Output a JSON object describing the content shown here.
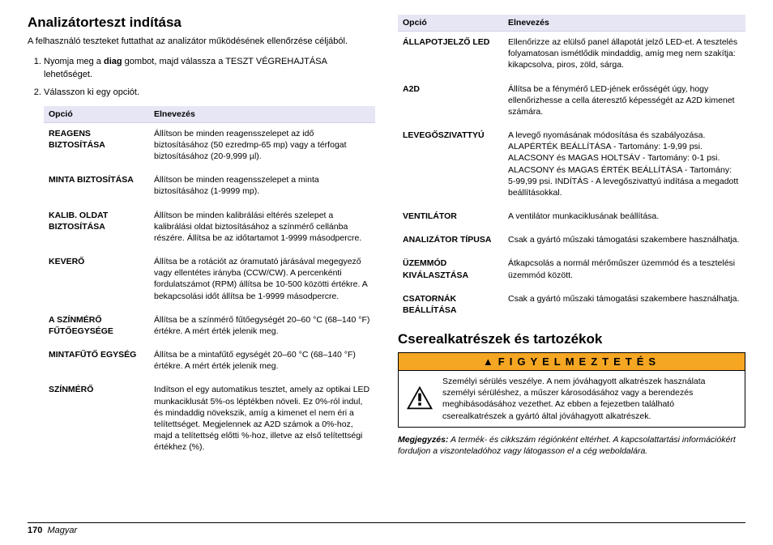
{
  "left": {
    "heading": "Analizátorteszt indítása",
    "intro": "A felhasználó teszteket futtathat az analizátor működésének ellenőrzése céljából.",
    "steps": [
      {
        "pre": "Nyomja meg a ",
        "bold": "diag",
        "post": " gombot, majd válassza a TESZT VÉGREHAJTÁSA lehetőséget."
      },
      {
        "pre": "Válasszon ki egy opciót.",
        "bold": "",
        "post": ""
      }
    ],
    "table": {
      "header_option": "Opció",
      "header_desc": "Elnevezés",
      "rows": [
        {
          "name": "REAGENS BIZTOSÍTÁSA",
          "desc": "Állítson be minden reagensszelepet az idő biztosításához (50 ezredmp-65 mp) vagy a térfogat biztosításához (20-9,999 µl)."
        },
        {
          "name": "MINTA BIZTOSÍTÁSA",
          "desc": "Állítson be minden reagensszelepet a minta biztosításához (1-9999 mp)."
        },
        {
          "name": "KALIB. OLDAT BIZTOSÍTÁSA",
          "desc": "Állítson be minden kalibrálási eltérés szelepet a kalibrálási oldat biztosításához a színmérő cellánba részére. Állítsa be az időtartamot 1-9999 másodpercre."
        },
        {
          "name": "KEVERŐ",
          "desc": "Állítsa be a rotációt az óramutató járásával megegyező vagy ellentétes irányba (CCW/CW). A percenkénti fordulatszámot (RPM) állítsa be 10-500 közötti értékre. A bekapcsolási időt állítsa be 1-9999 másodpercre."
        },
        {
          "name": "A SZÍNMÉRŐ FŰTŐEGYSÉGE",
          "desc": "Állítsa be a színmérő fűtőegységét 20–60 °C (68–140 °F) értékre. A mért érték jelenik meg."
        },
        {
          "name": "MINTAFŰTŐ EGYSÉG",
          "desc": "Állítsa be a mintafűtő egységét 20–60 °C (68–140 °F) értékre. A mért érték jelenik meg."
        },
        {
          "name": "SZÍNMÉRŐ",
          "desc": "Indítson el egy automatikus tesztet, amely az optikai LED munkaciklusát 5%-os léptékben növeli. Ez 0%-ról indul, és mindaddig növekszik, amíg a kimenet el nem éri a telítettséget. Megjelennek az A2D számok a 0%-hoz, majd a telítettség előtti %-hoz, illetve az első telítettségi értékhez (%)."
        }
      ]
    }
  },
  "right": {
    "table": {
      "header_option": "Opció",
      "header_desc": "Elnevezés",
      "rows": [
        {
          "name": "ÁLLAPOTJELZŐ LED",
          "desc": "Ellenőrizze az elülső panel állapotát jelző LED-et. A tesztelés folyamatosan ismétlődik mindaddig, amíg meg nem szakítja: kikapcsolva, piros, zöld, sárga."
        },
        {
          "name": "A2D",
          "desc": "Állítsa be a fénymérő LED-jének erősségét úgy, hogy ellenőrizhesse a cella áteresztő képességét az A2D kimenet számára."
        },
        {
          "name": "LEVEGŐSZIVATTYÚ",
          "desc": "A levegő nyomásának módosítása és szabályozása. ALAPÉRTÉK BEÁLLÍTÁSA - Tartomány: 1-9,99 psi. ALACSONY és MAGAS HOLTSÁV - Tartomány: 0-1 psi. ALACSONY és MAGAS ÉRTÉK BEÁLLÍTÁSA - Tartomány: 5-99,99 psi. INDÍTÁS - A levegőszivattyú indítása a megadott beállításokkal."
        },
        {
          "name": "VENTILÁTOR",
          "desc": "A ventilátor munkaciklusának beállítása."
        },
        {
          "name": "ANALIZÁTOR TÍPUSA",
          "desc": "Csak a gyártó műszaki támogatási szakembere használhatja."
        },
        {
          "name": "ÜZEMMÓD KIVÁLASZTÁSA",
          "desc": "Átkapcsolás a normál mérőműszer üzemmód és a tesztelési üzemmód között."
        },
        {
          "name": "CSATORNÁK BEÁLLÍTÁSA",
          "desc": "Csak a gyártó műszaki támogatási szakembere használhatja."
        }
      ]
    },
    "heading2": "Cserealkatrészek és tartozékok",
    "warning_title": "FIGYELMEZTETÉS",
    "warning_text": "Személyi sérülés veszélye. A nem jóváhagyott alkatrészek használata személyi sérüléshez, a műszer károsodásához vagy a berendezés meghibásodásához vezethet. Az ebben a fejezetben található cserealkatrészek a gyártó által jóváhagyott alkatrészek.",
    "note_bold": "Megjegyzés:",
    "note_text": " A termék- és cikkszám régiónként eltérhet. A kapcsolattartási információkért forduljon a viszonteladóhoz vagy látogasson el a cég weboldalára."
  },
  "footer_page": "170",
  "footer_lang": "Magyar"
}
